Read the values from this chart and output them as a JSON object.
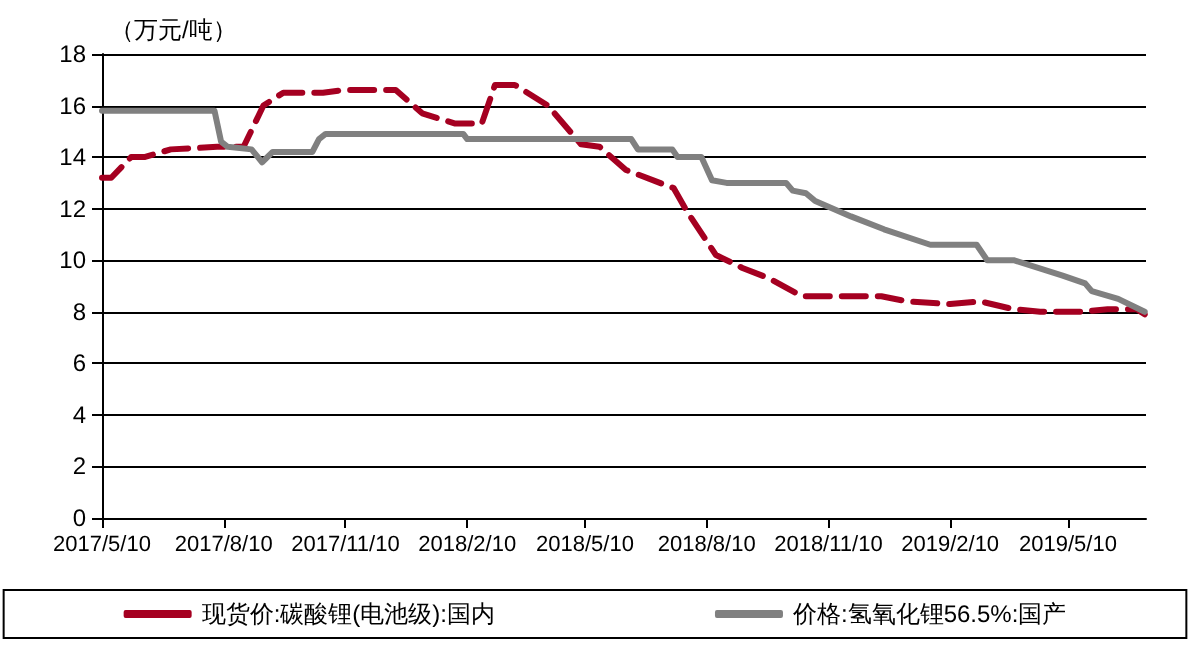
{
  "chart_data": {
    "type": "line",
    "ylabel": "（万元/吨）",
    "xlim": [
      "2017-05-10",
      "2019-07-08"
    ],
    "ylim": [
      0,
      18
    ],
    "yticks": [
      0,
      2,
      4,
      6,
      8,
      10,
      12,
      14,
      16,
      18
    ],
    "xticks": [
      {
        "value": "2017-05-10",
        "label": "2017/5/10"
      },
      {
        "value": "2017-08-10",
        "label": "2017/8/10"
      },
      {
        "value": "2017-11-10",
        "label": "2017/11/10"
      },
      {
        "value": "2018-02-10",
        "label": "2018/2/10"
      },
      {
        "value": "2018-05-10",
        "label": "2018/5/10"
      },
      {
        "value": "2018-08-10",
        "label": "2018/8/10"
      },
      {
        "value": "2018-11-10",
        "label": "2018/11/10"
      },
      {
        "value": "2019-02-10",
        "label": "2019/2/10"
      },
      {
        "value": "2019-05-10",
        "label": "2019/5/10"
      }
    ],
    "grid": "y",
    "legend": "bottom",
    "marker": "none",
    "series": [
      {
        "name": "现货价:碳酸锂(电池级):国内",
        "color": "#a50021",
        "line_style": "dashed",
        "x": [
          "2017-05-10",
          "2017-05-17",
          "2017-06-01",
          "2017-06-11",
          "2017-07-01",
          "2017-08-05",
          "2017-08-25",
          "2017-09-09",
          "2017-09-24",
          "2017-10-24",
          "2017-11-08",
          "2017-12-18",
          "2018-01-07",
          "2018-02-01",
          "2018-02-21",
          "2018-03-03",
          "2018-03-18",
          "2018-04-12",
          "2018-05-07",
          "2018-05-21",
          "2018-06-10",
          "2018-07-16",
          "2018-07-26",
          "2018-08-17",
          "2018-09-06",
          "2018-09-26",
          "2018-10-21",
          "2018-11-25",
          "2018-12-20",
          "2019-01-09",
          "2019-02-10",
          "2019-03-05",
          "2019-03-30",
          "2019-04-19",
          "2019-05-20",
          "2019-06-09",
          "2019-07-01",
          "2019-07-07"
        ],
        "values": [
          13.2,
          13.2,
          14.0,
          14.0,
          14.3,
          14.4,
          14.4,
          16.0,
          16.5,
          16.5,
          16.6,
          16.6,
          15.7,
          15.3,
          15.3,
          16.8,
          16.8,
          16.0,
          14.5,
          14.4,
          13.5,
          12.8,
          11.9,
          10.2,
          9.7,
          9.3,
          8.6,
          8.6,
          8.6,
          8.4,
          8.3,
          8.4,
          8.1,
          8.0,
          8.0,
          8.1,
          8.1,
          7.9
        ]
      },
      {
        "name": "价格:氢氧化锂56.5%:国产",
        "color": "#808080",
        "line_style": "solid",
        "x": [
          "2017-05-10",
          "2017-08-03",
          "2017-08-08",
          "2017-08-13",
          "2017-08-31",
          "2017-09-08",
          "2017-09-16",
          "2017-10-16",
          "2017-10-21",
          "2017-10-26",
          "2018-02-07",
          "2018-02-10",
          "2018-06-14",
          "2018-06-19",
          "2018-07-15",
          "2018-07-19",
          "2018-08-06",
          "2018-08-14",
          "2018-08-25",
          "2018-10-09",
          "2018-10-14",
          "2018-10-24",
          "2018-10-31",
          "2018-11-27",
          "2018-12-22",
          "2019-01-26",
          "2019-03-02",
          "2019-03-10",
          "2019-03-30",
          "2019-05-06",
          "2019-05-23",
          "2019-05-28",
          "2019-06-17",
          "2019-07-07"
        ],
        "values": [
          15.8,
          15.8,
          14.6,
          14.4,
          14.3,
          13.8,
          14.2,
          14.2,
          14.7,
          14.9,
          14.9,
          14.7,
          14.7,
          14.3,
          14.3,
          14.0,
          14.0,
          13.1,
          13.0,
          13.0,
          12.7,
          12.6,
          12.3,
          11.7,
          11.2,
          10.6,
          10.6,
          10.0,
          10.0,
          9.4,
          9.1,
          8.8,
          8.5,
          8.0
        ]
      }
    ]
  }
}
